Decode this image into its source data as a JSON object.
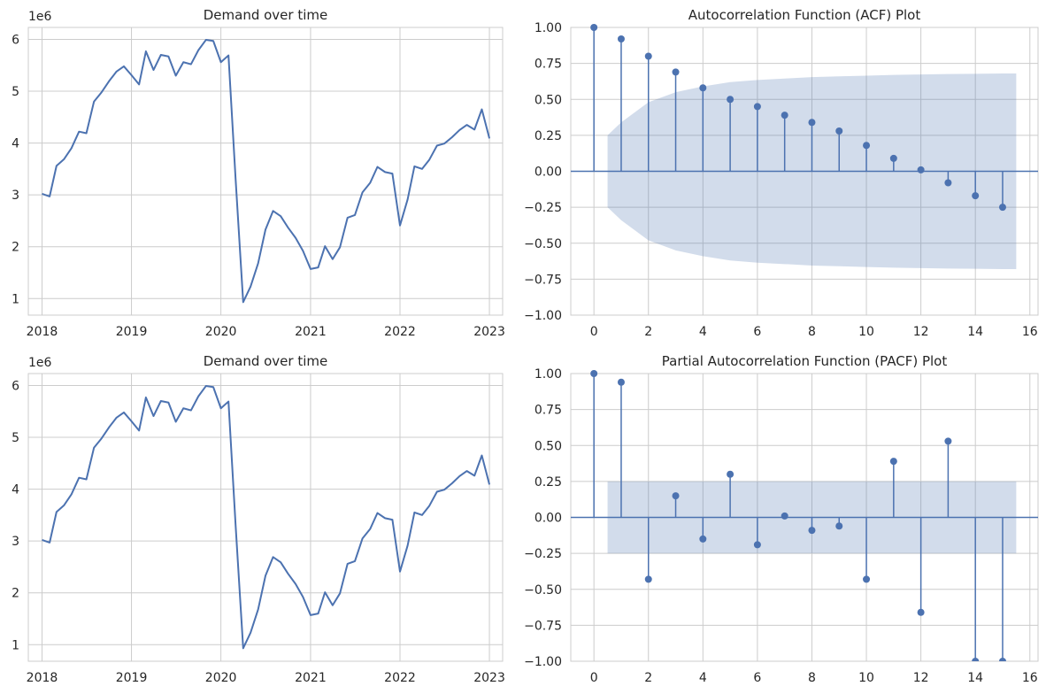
{
  "chart_data": [
    {
      "type": "line",
      "title": "Demand over time",
      "y_offset_label": "1e6",
      "xlabel": "",
      "ylabel": "",
      "x_ticks": [
        "2018",
        "2019",
        "2020",
        "2021",
        "2022",
        "2023"
      ],
      "y_ticks": [
        "1",
        "2",
        "3",
        "4",
        "5",
        "6"
      ],
      "x_range": [
        "2017-11-06",
        "2023-02-24"
      ],
      "ylim": [
        0.68,
        6.23
      ],
      "grid": true,
      "line_color": "#4c72b0",
      "series": [
        {
          "x": [
            "2018-01",
            "2018-02",
            "2018-03",
            "2018-04",
            "2018-05",
            "2018-06",
            "2018-07",
            "2018-08",
            "2018-09",
            "2018-10",
            "2018-11",
            "2018-12",
            "2019-01",
            "2019-02",
            "2019-03",
            "2019-04",
            "2019-05",
            "2019-06",
            "2019-07",
            "2019-08",
            "2019-09",
            "2019-10",
            "2019-11",
            "2019-12",
            "2020-01",
            "2020-02",
            "2020-03",
            "2020-04",
            "2020-05",
            "2020-06",
            "2020-07",
            "2020-08",
            "2020-09",
            "2020-10",
            "2020-11",
            "2020-12",
            "2021-01",
            "2021-02",
            "2021-03",
            "2021-04",
            "2021-05",
            "2021-06",
            "2021-07",
            "2021-08",
            "2021-09",
            "2021-10",
            "2021-11",
            "2021-12",
            "2022-01",
            "2022-02",
            "2022-03",
            "2022-04",
            "2022-05",
            "2022-06",
            "2022-07",
            "2022-08",
            "2022-09",
            "2022-10",
            "2022-11",
            "2022-12",
            "2023-01"
          ],
          "values": [
            3.02,
            2.97,
            3.56,
            3.69,
            3.9,
            4.22,
            4.19,
            4.8,
            4.98,
            5.19,
            5.38,
            5.48,
            5.31,
            5.13,
            5.77,
            5.41,
            5.7,
            5.67,
            5.3,
            5.56,
            5.52,
            5.79,
            5.99,
            5.97,
            5.56,
            5.69,
            3.31,
            0.93,
            1.23,
            1.68,
            2.33,
            2.69,
            2.59,
            2.37,
            2.17,
            1.92,
            1.57,
            1.6,
            2.01,
            1.76,
            1.99,
            2.56,
            2.61,
            3.05,
            3.23,
            3.54,
            3.44,
            3.41,
            2.41,
            2.91,
            3.55,
            3.5,
            3.68,
            3.95,
            3.99,
            4.11,
            4.25,
            4.35,
            4.26,
            4.65,
            4.09
          ]
        }
      ]
    },
    {
      "type": "stem",
      "title": "Autocorrelation Function (ACF) Plot",
      "xlabel": "",
      "ylabel": "",
      "x_ticks": [
        "0",
        "2",
        "4",
        "6",
        "8",
        "10",
        "12",
        "14",
        "16"
      ],
      "y_ticks": [
        "−1.00",
        "−0.75",
        "−0.50",
        "−0.25",
        "0.00",
        "0.25",
        "0.50",
        "0.75",
        "1.00"
      ],
      "xlim": [
        -0.85,
        16.3
      ],
      "ylim": [
        -1.0,
        1.0
      ],
      "grid": true,
      "stem_color": "#4c72b0",
      "band_color": "#4c72b0",
      "lags": [
        0,
        1,
        2,
        3,
        4,
        5,
        6,
        7,
        8,
        9,
        10,
        11,
        12,
        13,
        14,
        15
      ],
      "values": [
        1.0,
        0.92,
        0.8,
        0.69,
        0.58,
        0.5,
        0.45,
        0.39,
        0.34,
        0.28,
        0.18,
        0.09,
        0.01,
        -0.08,
        -0.17,
        -0.25
      ],
      "confidence_band": {
        "x": [
          0.5,
          1,
          2,
          3,
          4,
          5,
          6,
          7,
          8,
          9,
          10,
          11,
          12,
          13,
          14,
          15,
          15.5
        ],
        "upper": [
          0.25,
          0.34,
          0.48,
          0.55,
          0.59,
          0.62,
          0.635,
          0.645,
          0.655,
          0.66,
          0.665,
          0.67,
          0.673,
          0.676,
          0.678,
          0.68,
          0.68
        ]
      }
    },
    {
      "type": "line",
      "title": "Demand over time",
      "y_offset_label": "1e6",
      "xlabel": "",
      "ylabel": "",
      "x_ticks": [
        "2018",
        "2019",
        "2020",
        "2021",
        "2022",
        "2023"
      ],
      "y_ticks": [
        "1",
        "2",
        "3",
        "4",
        "5",
        "6"
      ],
      "x_range": [
        "2017-11-06",
        "2023-02-24"
      ],
      "ylim": [
        0.68,
        6.23
      ],
      "grid": true,
      "line_color": "#4c72b0",
      "series": [
        {
          "x": [
            "2018-01",
            "2018-02",
            "2018-03",
            "2018-04",
            "2018-05",
            "2018-06",
            "2018-07",
            "2018-08",
            "2018-09",
            "2018-10",
            "2018-11",
            "2018-12",
            "2019-01",
            "2019-02",
            "2019-03",
            "2019-04",
            "2019-05",
            "2019-06",
            "2019-07",
            "2019-08",
            "2019-09",
            "2019-10",
            "2019-11",
            "2019-12",
            "2020-01",
            "2020-02",
            "2020-03",
            "2020-04",
            "2020-05",
            "2020-06",
            "2020-07",
            "2020-08",
            "2020-09",
            "2020-10",
            "2020-11",
            "2020-12",
            "2021-01",
            "2021-02",
            "2021-03",
            "2021-04",
            "2021-05",
            "2021-06",
            "2021-07",
            "2021-08",
            "2021-09",
            "2021-10",
            "2021-11",
            "2021-12",
            "2022-01",
            "2022-02",
            "2022-03",
            "2022-04",
            "2022-05",
            "2022-06",
            "2022-07",
            "2022-08",
            "2022-09",
            "2022-10",
            "2022-11",
            "2022-12",
            "2023-01"
          ],
          "values": [
            3.02,
            2.97,
            3.56,
            3.69,
            3.9,
            4.22,
            4.19,
            4.8,
            4.98,
            5.19,
            5.38,
            5.48,
            5.31,
            5.13,
            5.77,
            5.41,
            5.7,
            5.67,
            5.3,
            5.56,
            5.52,
            5.79,
            5.99,
            5.97,
            5.56,
            5.69,
            3.31,
            0.93,
            1.23,
            1.68,
            2.33,
            2.69,
            2.59,
            2.37,
            2.17,
            1.92,
            1.57,
            1.6,
            2.01,
            1.76,
            1.99,
            2.56,
            2.61,
            3.05,
            3.23,
            3.54,
            3.44,
            3.41,
            2.41,
            2.91,
            3.55,
            3.5,
            3.68,
            3.95,
            3.99,
            4.11,
            4.25,
            4.35,
            4.26,
            4.65,
            4.09
          ]
        }
      ]
    },
    {
      "type": "stem",
      "title": "Partial Autocorrelation Function (PACF) Plot",
      "xlabel": "",
      "ylabel": "",
      "x_ticks": [
        "0",
        "2",
        "4",
        "6",
        "8",
        "10",
        "12",
        "14",
        "16"
      ],
      "y_ticks": [
        "−1.00",
        "−0.75",
        "−0.50",
        "−0.25",
        "0.00",
        "0.25",
        "0.50",
        "0.75",
        "1.00"
      ],
      "xlim": [
        -0.85,
        16.3
      ],
      "ylim": [
        -1.0,
        1.0
      ],
      "grid": true,
      "stem_color": "#4c72b0",
      "band_color": "#4c72b0",
      "lags": [
        0,
        1,
        2,
        3,
        4,
        5,
        6,
        7,
        8,
        9,
        10,
        11,
        12,
        13,
        14,
        15
      ],
      "values": [
        1.0,
        0.94,
        -0.43,
        0.15,
        -0.15,
        0.3,
        -0.19,
        0.01,
        -0.09,
        -0.06,
        -0.43,
        0.39,
        -0.66,
        0.53,
        -1.0,
        -1.0
      ],
      "confidence_band": {
        "x": [
          0.5,
          15.5
        ],
        "upper": [
          0.25,
          0.25
        ]
      }
    }
  ]
}
